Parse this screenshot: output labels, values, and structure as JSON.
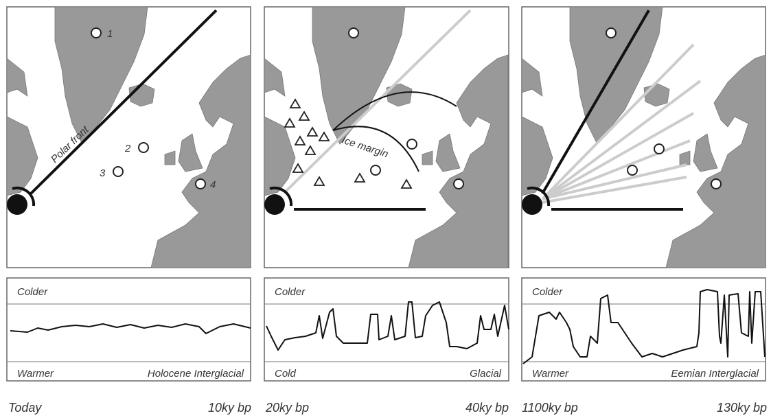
{
  "panels": [
    {
      "map_labels": {
        "site_1": "1",
        "site_2": "2",
        "site_3": "3",
        "site_4": "4",
        "front": "Polar front"
      },
      "upper_label": "Colder",
      "lower_left": "Warmer",
      "lower_right": "Holocene Interglacial",
      "time_start": "Today",
      "time_end": "10ky bp"
    },
    {
      "map_labels": {
        "margin": "Ice margin"
      },
      "upper_label": "Colder",
      "lower_left": "Cold",
      "lower_right": "Glacial",
      "time_start": "20ky bp",
      "time_end": "40ky bp"
    },
    {
      "map_labels": {},
      "upper_label": "Colder",
      "lower_left": "Warmer",
      "lower_right": "Eemian Interglacial",
      "time_start": "1100ky bp",
      "time_end": "130ky bp"
    }
  ]
}
